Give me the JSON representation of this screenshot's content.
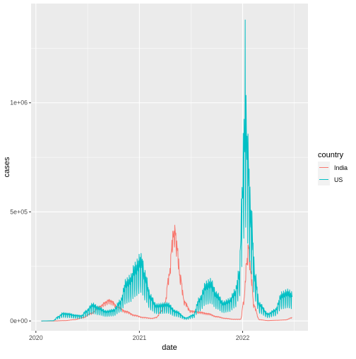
{
  "chart_data": {
    "type": "line",
    "xlabel": "date",
    "ylabel": "cases",
    "x_ticks": [
      "2020",
      "2021",
      "2022"
    ],
    "y_ticks": [
      "0e+00",
      "5e+05",
      "1e+06"
    ],
    "xlim": [
      "2019-12-15",
      "2022-08-20"
    ],
    "ylim": [
      -45000,
      1455000
    ],
    "grid": true,
    "legend": {
      "title": "country",
      "position": "right"
    },
    "colors": {
      "India": "#F8766D",
      "US": "#00BFC4",
      "panel": "#EBEBEB",
      "grid": "#FFFFFF"
    },
    "series": [
      {
        "name": "India",
        "color": "#F8766D",
        "weekly_amplitude": 0.06,
        "points": [
          [
            "2020-01-20",
            0
          ],
          [
            "2020-03-01",
            0
          ],
          [
            "2020-04-15",
            1500
          ],
          [
            "2020-05-15",
            6000
          ],
          [
            "2020-06-15",
            15000
          ],
          [
            "2020-07-15",
            35000
          ],
          [
            "2020-08-15",
            65000
          ],
          [
            "2020-09-01",
            82000
          ],
          [
            "2020-09-15",
            93000
          ],
          [
            "2020-09-25",
            88000
          ],
          [
            "2020-10-15",
            63000
          ],
          [
            "2020-11-15",
            43000
          ],
          [
            "2020-12-15",
            26000
          ],
          [
            "2021-01-15",
            16000
          ],
          [
            "2021-02-15",
            12000
          ],
          [
            "2021-03-01",
            16000
          ],
          [
            "2021-03-20",
            45000
          ],
          [
            "2021-04-01",
            80000
          ],
          [
            "2021-04-15",
            200000
          ],
          [
            "2021-04-30",
            385000
          ],
          [
            "2021-05-07",
            410000
          ],
          [
            "2021-05-15",
            330000
          ],
          [
            "2021-05-25",
            200000
          ],
          [
            "2021-06-10",
            85000
          ],
          [
            "2021-07-01",
            45000
          ],
          [
            "2021-08-01",
            40000
          ],
          [
            "2021-09-01",
            33000
          ],
          [
            "2021-10-01",
            20000
          ],
          [
            "2021-11-01",
            12000
          ],
          [
            "2021-12-01",
            8000
          ],
          [
            "2021-12-25",
            8000
          ],
          [
            "2022-01-05",
            90000
          ],
          [
            "2022-01-15",
            260000
          ],
          [
            "2022-01-22",
            340000
          ],
          [
            "2022-01-30",
            220000
          ],
          [
            "2022-02-10",
            70000
          ],
          [
            "2022-03-01",
            6000
          ],
          [
            "2022-04-01",
            1500
          ],
          [
            "2022-05-01",
            3000
          ],
          [
            "2022-06-01",
            5000
          ],
          [
            "2022-06-25",
            15000
          ]
        ]
      },
      {
        "name": "US",
        "color": "#00BFC4",
        "weekly_amplitude": 0.18,
        "points": [
          [
            "2020-01-20",
            0
          ],
          [
            "2020-03-01",
            1000
          ],
          [
            "2020-03-20",
            18000
          ],
          [
            "2020-04-05",
            32000
          ],
          [
            "2020-04-25",
            30000
          ],
          [
            "2020-05-20",
            24000
          ],
          [
            "2020-06-10",
            22000
          ],
          [
            "2020-06-25",
            40000
          ],
          [
            "2020-07-20",
            68000
          ],
          [
            "2020-08-10",
            55000
          ],
          [
            "2020-09-05",
            40000
          ],
          [
            "2020-10-01",
            45000
          ],
          [
            "2020-10-25",
            80000
          ],
          [
            "2020-11-15",
            160000
          ],
          [
            "2020-12-01",
            175000
          ],
          [
            "2020-12-15",
            220000
          ],
          [
            "2021-01-08",
            260000
          ],
          [
            "2021-01-20",
            190000
          ],
          [
            "2021-02-10",
            100000
          ],
          [
            "2021-03-01",
            65000
          ],
          [
            "2021-04-10",
            70000
          ],
          [
            "2021-05-10",
            40000
          ],
          [
            "2021-06-15",
            13000
          ],
          [
            "2021-07-10",
            25000
          ],
          [
            "2021-08-01",
            90000
          ],
          [
            "2021-08-25",
            150000
          ],
          [
            "2021-09-10",
            160000
          ],
          [
            "2021-10-01",
            110000
          ],
          [
            "2021-10-25",
            75000
          ],
          [
            "2021-11-15",
            85000
          ],
          [
            "2021-12-05",
            120000
          ],
          [
            "2021-12-20",
            200000
          ],
          [
            "2021-12-30",
            500000
          ],
          [
            "2022-01-05",
            750000
          ],
          [
            "2022-01-12",
            850000
          ],
          [
            "2022-01-20",
            700000
          ],
          [
            "2022-01-30",
            450000
          ],
          [
            "2022-02-15",
            180000
          ],
          [
            "2022-03-01",
            70000
          ],
          [
            "2022-04-01",
            30000
          ],
          [
            "2022-04-25",
            45000
          ],
          [
            "2022-05-20",
            110000
          ],
          [
            "2022-06-10",
            120000
          ],
          [
            "2022-06-25",
            110000
          ]
        ],
        "spikes": [
          [
            "2021-01-07",
            310000
          ],
          [
            "2021-12-28",
            560000
          ],
          [
            "2022-01-03",
            860000
          ],
          [
            "2022-01-10",
            1380000
          ],
          [
            "2022-01-18",
            760000
          ]
        ]
      }
    ]
  }
}
